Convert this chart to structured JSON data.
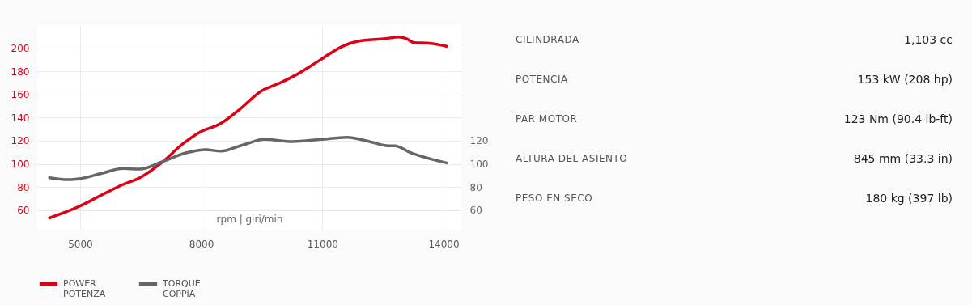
{
  "chart_data": [
    {
      "type": "line",
      "xlabel": "rpm | giri/min",
      "xlim": [
        3940,
        14440
      ],
      "xticks": [
        5000,
        8000,
        11000,
        14000
      ],
      "ylim": [
        43,
        220
      ],
      "yticks": [
        60,
        80,
        100,
        120,
        140,
        160,
        180,
        200
      ],
      "y2lim": [
        43,
        220
      ],
      "y2ticks": [
        60,
        80,
        100,
        120
      ],
      "grid": true,
      "legend": "bottom",
      "series": [
        {
          "name": "POWER\nPOTENZA",
          "color": "#e00016",
          "x": [
            4244,
            5000,
            5555,
            6056,
            6480,
            7020,
            7560,
            7946,
            8486,
            8949,
            9488,
            9951,
            10337,
            10954,
            11494,
            11880,
            12573,
            12882,
            13075,
            13268,
            13654,
            14077
          ],
          "values": [
            53.3,
            63.5,
            73.4,
            82,
            88,
            101,
            117.7,
            127,
            135,
            147,
            163,
            170,
            176.7,
            190,
            201.6,
            206,
            208.3,
            209.7,
            208.3,
            204.8,
            204.3,
            201.6
          ]
        },
        {
          "name": "TORQUE\nCOPPIA",
          "color": "#666666",
          "axis": "y2",
          "x": [
            4244,
            4707,
            5015,
            5555,
            6056,
            6480,
            7020,
            7637,
            8100,
            8486,
            9026,
            9566,
            10260,
            10954,
            11609,
            12110,
            12573,
            12805,
            13190,
            14077
          ],
          "values": [
            88,
            86.3,
            87.3,
            92,
            96,
            95.4,
            101.6,
            109.6,
            112.3,
            111,
            116.3,
            121.1,
            119.3,
            121.1,
            123,
            119.8,
            115.8,
            115.5,
            109.6,
            100.8
          ]
        }
      ]
    },
    {
      "type": "other",
      "annotations": [
        "CILINDRADA",
        "1,103 cc",
        "POTENCIA",
        "153 kW (208 hp)",
        "PAR MOTOR",
        "123 Nm (90.4 lb-ft)",
        "ALTURA DEL ASIENTO",
        "845 mm (33.3 in)",
        "PESO EN SECO",
        "180 kg (397 lb)"
      ]
    }
  ]
}
